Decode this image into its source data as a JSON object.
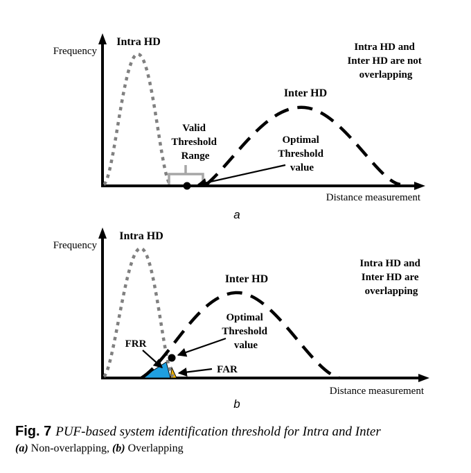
{
  "panel_a": {
    "y_axis_label": "Frequency",
    "x_axis_label": "Distance measurement",
    "intra_label": "Intra HD",
    "inter_label": "Inter HD",
    "note_lines": [
      "Intra HD and",
      "Inter HD are not",
      "overlapping"
    ],
    "valid_lines": [
      "Valid",
      "Threshold",
      "Range"
    ],
    "optimal_lines": [
      "Optimal",
      "Threshold",
      "value"
    ],
    "sublabel": "a"
  },
  "panel_b": {
    "y_axis_label": "Frequency",
    "x_axis_label": "Distance measurement",
    "intra_label": "Intra HD",
    "inter_label": "Inter HD",
    "note_lines": [
      "Intra HD and",
      "Inter HD are",
      "overlapping"
    ],
    "optimal_lines": [
      "Optimal",
      "Threshold",
      "value"
    ],
    "frr_label": "FRR",
    "far_label": "FAR",
    "sublabel": "b"
  },
  "colors": {
    "intra_curve": "#808080",
    "inter_curve": "#000000",
    "frr_fill": "#1f9fe0",
    "far_fill": "#f0b400",
    "valid_bracket": "#a6a6a6"
  },
  "caption": {
    "fig_label": "Fig. 7",
    "title": "PUF-based system identification threshold for Intra and Inter",
    "a_tag": "(a)",
    "a_text": " Non-overlapping, ",
    "b_tag": "(b)",
    "b_text": " Overlapping"
  }
}
